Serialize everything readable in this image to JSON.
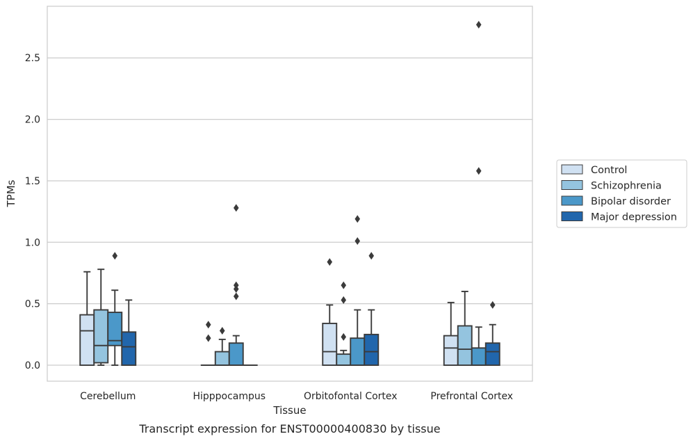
{
  "chart_data": {
    "type": "box",
    "xlabel": "Tissue",
    "ylabel": "TPMs",
    "caption": "Transcript expression for ENST00000400830 by tissue",
    "ylim": [
      -0.13,
      2.92
    ],
    "yticks": [
      0.0,
      0.5,
      1.0,
      1.5,
      2.0,
      2.5
    ],
    "ytick_labels": [
      "0.0",
      "0.5",
      "1.0",
      "1.5",
      "2.0",
      "2.5"
    ],
    "grid": "horizontal",
    "legend_position": "right",
    "categories": [
      "Cerebellum",
      "Hipppocampus",
      "Orbitofontal Cortex",
      "Prefrontal Cortex"
    ],
    "series": [
      {
        "name": "Control",
        "color": "#d0e1f2",
        "boxes": [
          {
            "whislo": 0.0,
            "q1": 0.0,
            "med": 0.28,
            "q3": 0.41,
            "whishi": 0.76,
            "fliers": []
          },
          {
            "whislo": 0.0,
            "q1": 0.0,
            "med": 0.0,
            "q3": 0.0,
            "whishi": 0.0,
            "fliers": [
              0.22,
              0.33
            ]
          },
          {
            "whislo": 0.0,
            "q1": 0.0,
            "med": 0.11,
            "q3": 0.34,
            "whishi": 0.49,
            "fliers": [
              0.84
            ]
          },
          {
            "whislo": 0.0,
            "q1": 0.0,
            "med": 0.14,
            "q3": 0.24,
            "whishi": 0.51,
            "fliers": []
          }
        ]
      },
      {
        "name": "Schizophrenia",
        "color": "#94c4df",
        "boxes": [
          {
            "whislo": 0.0,
            "q1": 0.02,
            "med": 0.16,
            "q3": 0.45,
            "whishi": 0.78,
            "fliers": []
          },
          {
            "whislo": 0.0,
            "q1": 0.0,
            "med": 0.0,
            "q3": 0.11,
            "whishi": 0.21,
            "fliers": [
              0.28
            ]
          },
          {
            "whislo": 0.0,
            "q1": 0.0,
            "med": 0.0,
            "q3": 0.09,
            "whishi": 0.12,
            "fliers": [
              0.23,
              0.53,
              0.65
            ]
          },
          {
            "whislo": 0.0,
            "q1": 0.0,
            "med": 0.13,
            "q3": 0.32,
            "whishi": 0.6,
            "fliers": []
          }
        ]
      },
      {
        "name": "Bipolar disorder",
        "color": "#4b98c9",
        "boxes": [
          {
            "whislo": 0.0,
            "q1": 0.16,
            "med": 0.2,
            "q3": 0.43,
            "whishi": 0.61,
            "fliers": [
              0.89
            ]
          },
          {
            "whislo": 0.0,
            "q1": 0.0,
            "med": 0.0,
            "q3": 0.18,
            "whishi": 0.24,
            "fliers": [
              0.56,
              0.62,
              0.65,
              1.28
            ]
          },
          {
            "whislo": 0.0,
            "q1": 0.0,
            "med": 0.0,
            "q3": 0.22,
            "whishi": 0.45,
            "fliers": [
              1.01,
              1.19
            ]
          },
          {
            "whislo": 0.0,
            "q1": 0.0,
            "med": 0.0,
            "q3": 0.14,
            "whishi": 0.31,
            "fliers": [
              1.58,
              2.77
            ]
          }
        ]
      },
      {
        "name": "Major depression",
        "color": "#2166ac",
        "boxes": [
          {
            "whislo": 0.0,
            "q1": 0.0,
            "med": 0.15,
            "q3": 0.27,
            "whishi": 0.53,
            "fliers": []
          },
          {
            "whislo": 0.0,
            "q1": 0.0,
            "med": 0.0,
            "q3": 0.0,
            "whishi": 0.0,
            "fliers": []
          },
          {
            "whislo": 0.0,
            "q1": 0.0,
            "med": 0.11,
            "q3": 0.25,
            "whishi": 0.45,
            "fliers": [
              0.89
            ]
          },
          {
            "whislo": 0.0,
            "q1": 0.0,
            "med": 0.11,
            "q3": 0.18,
            "whishi": 0.33,
            "fliers": [
              0.49
            ]
          }
        ]
      }
    ]
  }
}
